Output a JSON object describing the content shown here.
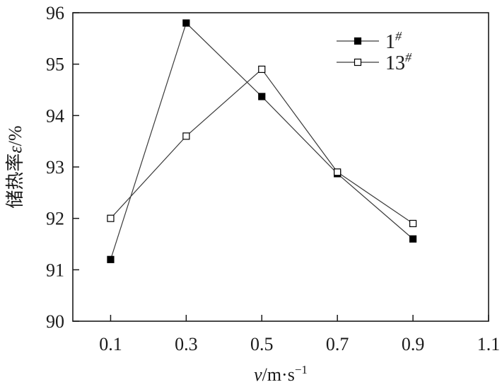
{
  "chart_data": {
    "type": "line",
    "xlabel": "v/m·s⁻¹",
    "ylabel": "储热率ε/%",
    "xlim": [
      0.0,
      1.1
    ],
    "ylim": [
      90,
      96
    ],
    "x_ticks": [
      "0.1",
      "0.3",
      "0.5",
      "0.7",
      "0.9",
      "1.1"
    ],
    "y_ticks": [
      "90",
      "91",
      "92",
      "93",
      "94",
      "95",
      "96"
    ],
    "grid": false,
    "legend_position": "top-right",
    "series": [
      {
        "name": "1#",
        "marker": "filled-square",
        "color": "#000000",
        "x": [
          0.1,
          0.3,
          0.5,
          0.7,
          0.9
        ],
        "y": [
          91.2,
          95.8,
          94.37,
          92.87,
          91.6
        ]
      },
      {
        "name": "13#",
        "marker": "open-square",
        "color": "#000000",
        "x": [
          0.1,
          0.3,
          0.5,
          0.7,
          0.9
        ],
        "y": [
          92.0,
          93.6,
          94.9,
          92.9,
          91.9
        ]
      }
    ]
  }
}
